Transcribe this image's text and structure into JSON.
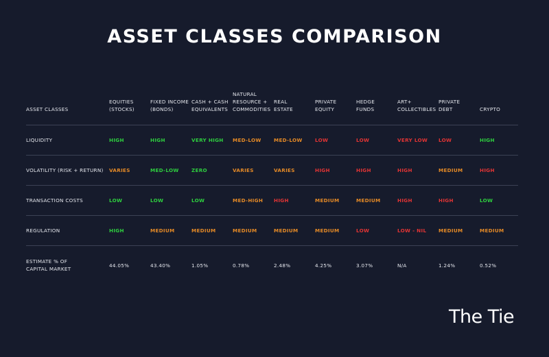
{
  "title": "ASSET CLASSES COMPARISON",
  "logo": "The Tie",
  "colors": {
    "background": "#161b2c",
    "green": "#2ecf3f",
    "orange": "#e58a26",
    "red": "#e23434",
    "text": "#e6e8ee"
  },
  "chart_data": {
    "type": "table",
    "columns": [
      "ASSET CLASSES",
      "EQUITIES\n(STOCKS)",
      "FIXED INCOME\n(BONDS)",
      "CASH + CASH\nEQUIVALENTS",
      "NATURAL\nRESOURCE +\nCOMMODITIES",
      "REAL\nESTATE",
      "PRIVATE\nEQUITY",
      "HEDGE\nFUNDS",
      "ART+\nCOLLECTIBLES",
      "PRIVATE\nDEBT",
      "CRYPTO"
    ],
    "rows": [
      {
        "label": "LIQUIDITY",
        "values": [
          "HIGH",
          "HIGH",
          "VERY HIGH",
          "MED-LOW",
          "MED-LOW",
          "LOW",
          "LOW",
          "VERY LOW",
          "LOW",
          "HIGH"
        ],
        "colors": [
          "#2ecf3f",
          "#2ecf3f",
          "#2ecf3f",
          "#e58a26",
          "#e58a26",
          "#e23434",
          "#e23434",
          "#e23434",
          "#e23434",
          "#2ecf3f"
        ]
      },
      {
        "label": "VOLATILITY (RISK + RETURN)",
        "values": [
          "VARIES",
          "MED-LOW",
          "ZERO",
          "VARIES",
          "VARIES",
          "HIGH",
          "HIGH",
          "HIGH",
          "MEDIUM",
          "HIGH"
        ],
        "colors": [
          "#e58a26",
          "#2ecf3f",
          "#2ecf3f",
          "#e58a26",
          "#e58a26",
          "#e23434",
          "#e23434",
          "#e23434",
          "#e58a26",
          "#e23434"
        ]
      },
      {
        "label": "TRANSACTION COSTS",
        "values": [
          "LOW",
          "LOW",
          "LOW",
          "MED-HIGH",
          "HIGH",
          "MEDIUM",
          "MEDIUM",
          "HIGH",
          "HIGH",
          "LOW"
        ],
        "colors": [
          "#2ecf3f",
          "#2ecf3f",
          "#2ecf3f",
          "#e58a26",
          "#e23434",
          "#e58a26",
          "#e58a26",
          "#e23434",
          "#e23434",
          "#2ecf3f"
        ]
      },
      {
        "label": "REGULATION",
        "values": [
          "HIGH",
          "MEDIUM",
          "MEDIUM",
          "MEDIUM",
          "MEDIUM",
          "MEDIUM",
          "LOW",
          "LOW - NIL",
          "MEDIUM",
          "MEDIUM"
        ],
        "colors": [
          "#2ecf3f",
          "#e58a26",
          "#e58a26",
          "#e58a26",
          "#e58a26",
          "#e58a26",
          "#e23434",
          "#e23434",
          "#e58a26",
          "#e58a26"
        ]
      },
      {
        "label": "ESTIMATE % OF\nCAPITAL MARKET",
        "values": [
          "44.05%",
          "43.40%",
          "1.05%",
          "0.78%",
          "2.48%",
          "4.25%",
          "3.07%",
          "N/A",
          "1.24%",
          "0.52%"
        ],
        "colors": [
          "#e6e8ee",
          "#e6e8ee",
          "#e6e8ee",
          "#e6e8ee",
          "#e6e8ee",
          "#e6e8ee",
          "#e6e8ee",
          "#e6e8ee",
          "#e6e8ee",
          "#e6e8ee"
        ]
      }
    ]
  }
}
